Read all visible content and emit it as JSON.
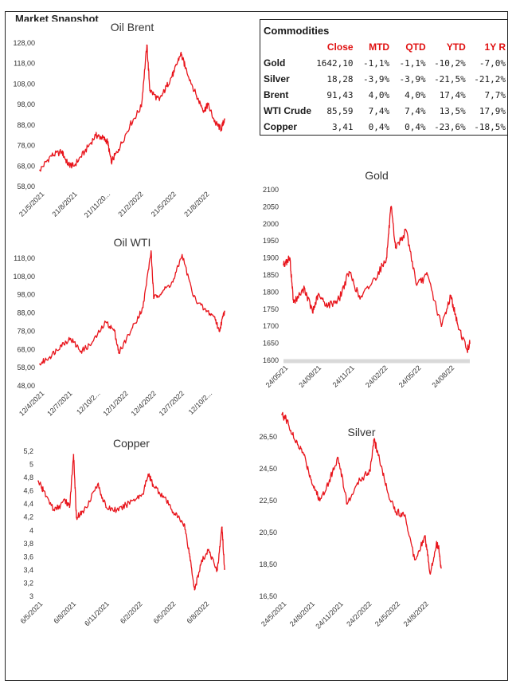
{
  "page_title": "Market Snapshot",
  "commodities": {
    "title": "Commodities",
    "headers": [
      "",
      "Close",
      "MTD",
      "QTD",
      "YTD",
      "1Y R"
    ],
    "rows": [
      [
        "Gold",
        "1642,10",
        "-1,1%",
        "-1,1%",
        "-10,2%",
        "-7,0%"
      ],
      [
        "Silver",
        "18,28",
        "-3,9%",
        "-3,9%",
        "-21,5%",
        "-21,2%"
      ],
      [
        "Brent",
        "91,43",
        "4,0%",
        "4,0%",
        "17,4%",
        "7,7%"
      ],
      [
        "WTI Crude",
        "85,59",
        "7,4%",
        "7,4%",
        "13,5%",
        "17,9%"
      ],
      [
        "Copper",
        "3,41",
        "0,4%",
        "0,4%",
        "-23,6%",
        "-18,5%"
      ]
    ]
  },
  "line_color": "#e8141b",
  "chart_data": [
    {
      "id": "brent",
      "type": "line",
      "title": "Oil Brent",
      "ylim": [
        58,
        128
      ],
      "yticks": [
        "58,00",
        "68,00",
        "78,00",
        "88,00",
        "98,00",
        "108,00",
        "118,00",
        "128,00"
      ],
      "xticks": [
        "21/5/2021",
        "21/8/2021",
        "21/11/20...",
        "21/2/2022",
        "21/5/2022",
        "21/8/2022"
      ],
      "x": [
        "2021-05-21",
        "2021-06-20",
        "2021-07-20",
        "2021-08-05",
        "2021-08-21",
        "2021-09-20",
        "2021-10-20",
        "2021-11-05",
        "2021-11-21",
        "2021-12-01",
        "2021-12-21",
        "2022-01-21",
        "2022-02-21",
        "2022-03-08",
        "2022-03-16",
        "2022-04-11",
        "2022-05-01",
        "2022-05-21",
        "2022-06-08",
        "2022-06-21",
        "2022-07-21",
        "2022-08-10",
        "2022-08-21",
        "2022-09-10",
        "2022-09-26",
        "2022-10-05"
      ],
      "y": [
        66,
        73,
        75,
        69,
        68,
        75,
        83,
        82,
        80,
        70,
        76,
        88,
        97,
        127,
        105,
        100,
        107,
        114,
        123,
        116,
        102,
        95,
        98,
        89,
        86,
        91
      ]
    },
    {
      "id": "wti",
      "type": "line",
      "title": "Oil WTI",
      "ylim": [
        48,
        118
      ],
      "yticks": [
        "48,00",
        "58,00",
        "68,00",
        "78,00",
        "88,00",
        "98,00",
        "108,00",
        "118,00"
      ],
      "xticks": [
        "12/4/2021",
        "12/7/2021",
        "12/10/2...",
        "12/1/2022",
        "12/4/2022",
        "12/7/2022",
        "12/10/2..."
      ],
      "x": [
        "2021-04-12",
        "2021-05-12",
        "2021-06-12",
        "2021-07-12",
        "2021-08-12",
        "2021-09-12",
        "2021-10-25",
        "2021-11-20",
        "2021-12-02",
        "2022-01-12",
        "2022-02-12",
        "2022-03-08",
        "2022-03-16",
        "2022-04-12",
        "2022-05-12",
        "2022-06-08",
        "2022-07-12",
        "2022-08-12",
        "2022-09-12",
        "2022-09-26",
        "2022-10-12"
      ],
      "y": [
        60,
        64,
        70,
        74,
        67,
        71,
        83,
        78,
        66,
        80,
        91,
        122,
        96,
        100,
        105,
        120,
        97,
        90,
        86,
        78,
        89
      ]
    },
    {
      "id": "gold",
      "type": "line",
      "title": "Gold",
      "ylim": [
        1600,
        2100
      ],
      "yticks": [
        "1600",
        "1650",
        "1700",
        "1750",
        "1800",
        "1850",
        "1900",
        "1950",
        "2000",
        "2050",
        "2100"
      ],
      "xticks": [
        "24/05/21",
        "24/08/21",
        "24/11/21",
        "24/02/22",
        "24/05/22",
        "24/08/22"
      ],
      "x": [
        "2021-05-24",
        "2021-06-10",
        "2021-06-20",
        "2021-07-20",
        "2021-08-10",
        "2021-08-24",
        "2021-09-20",
        "2021-10-20",
        "2021-11-16",
        "2021-12-15",
        "2022-01-24",
        "2022-02-24",
        "2022-03-08",
        "2022-03-20",
        "2022-04-18",
        "2022-05-16",
        "2022-06-14",
        "2022-07-21",
        "2022-08-15",
        "2022-09-01",
        "2022-09-28",
        "2022-10-05"
      ],
      "y": [
        1880,
        1900,
        1770,
        1810,
        1740,
        1790,
        1760,
        1780,
        1860,
        1780,
        1840,
        1900,
        2050,
        1930,
        1980,
        1820,
        1850,
        1700,
        1790,
        1710,
        1630,
        1650
      ]
    },
    {
      "id": "copper",
      "type": "line",
      "title": "Copper",
      "ylim": [
        3,
        5.2
      ],
      "yticks": [
        "3",
        "3,2",
        "3,4",
        "3,6",
        "3,8",
        "4",
        "4,2",
        "4,4",
        "4,6",
        "4,8",
        "5",
        "5,2"
      ],
      "xticks": [
        "6/5/2021",
        "6/8/2021",
        "6/11/2021",
        "6/2/2022",
        "6/5/2022",
        "6/8/2022"
      ],
      "x": [
        "2021-05-06",
        "2021-05-20",
        "2021-06-20",
        "2021-07-20",
        "2021-08-01",
        "2021-08-12",
        "2021-08-20",
        "2021-09-10",
        "2021-10-18",
        "2021-11-10",
        "2021-12-15",
        "2022-01-20",
        "2022-02-20",
        "2022-03-07",
        "2022-03-20",
        "2022-04-20",
        "2022-05-20",
        "2022-06-15",
        "2022-07-01",
        "2022-07-14",
        "2022-08-01",
        "2022-08-20",
        "2022-09-15",
        "2022-09-28",
        "2022-10-05"
      ],
      "y": [
        4.75,
        4.6,
        4.3,
        4.45,
        4.35,
        5.15,
        4.2,
        4.3,
        4.7,
        4.35,
        4.3,
        4.45,
        4.55,
        4.85,
        4.7,
        4.5,
        4.25,
        4.1,
        3.6,
        3.1,
        3.5,
        3.7,
        3.4,
        4.05,
        3.41
      ]
    },
    {
      "id": "silver",
      "type": "line",
      "title": "Silver",
      "ylim": [
        16.5,
        26.5
      ],
      "yticks": [
        "16,50",
        "18,50",
        "20,50",
        "22,50",
        "24,50",
        "26,50"
      ],
      "xticks": [
        "24/5/2021",
        "24/8/2021",
        "24/11/2021",
        "24/2/2022",
        "24/5/2022",
        "24/8/2022"
      ],
      "x": [
        "2021-05-24",
        "2021-06-10",
        "2021-07-05",
        "2021-07-30",
        "2021-08-24",
        "2021-09-20",
        "2021-10-20",
        "2021-11-16",
        "2021-12-15",
        "2022-01-24",
        "2022-02-24",
        "2022-03-08",
        "2022-03-20",
        "2022-04-18",
        "2022-05-16",
        "2022-06-14",
        "2022-07-14",
        "2022-08-15",
        "2022-09-01",
        "2022-09-20",
        "2022-09-28",
        "2022-10-05"
      ],
      "y": [
        27.9,
        27.5,
        26.2,
        25.5,
        23.8,
        22.5,
        23.8,
        25.2,
        22.3,
        23.8,
        24.4,
        26.3,
        25.6,
        23.2,
        21.8,
        21.6,
        18.8,
        20.3,
        17.9,
        19.8,
        19.5,
        18.28
      ]
    }
  ]
}
